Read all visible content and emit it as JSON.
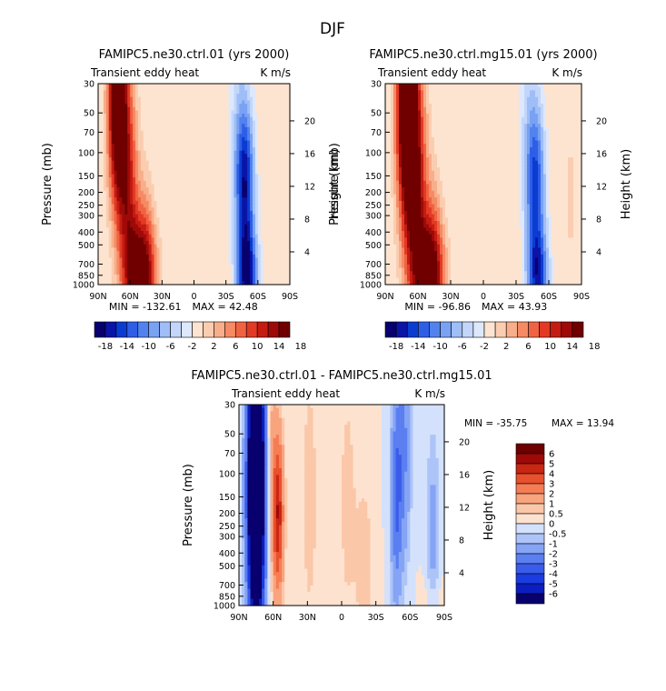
{
  "figure": {
    "season_title": "DJF",
    "variable_label": "Transient eddy heat",
    "units_label": "K m/s"
  },
  "axes_common": {
    "pressure_label": "Pressure (mb)",
    "height_label": "Height (km)",
    "pressure_ticks": [
      "30",
      "50",
      "70",
      "100",
      "150",
      "200",
      "250",
      "300",
      "400",
      "500",
      "700",
      "850",
      "1000"
    ],
    "height_ticks": [
      "4",
      "8",
      "12",
      "16",
      "20"
    ],
    "lat_ticks": [
      "90N",
      "60N",
      "30N",
      "0",
      "30S",
      "60S",
      "90S"
    ]
  },
  "chart_data": [
    {
      "type": "heatmap",
      "id": "panel_ctrl",
      "title": "FAMIPC5.ne30.ctrl.01 (yrs 2000)",
      "subtitle_left": "Transient eddy heat",
      "subtitle_right": "K m/s",
      "xlabel": "",
      "ylabel": "Pressure (mb)",
      "ylabel_right": "Height (km)",
      "xlim": [
        90,
        -90
      ],
      "ylim_mb": [
        1000,
        30
      ],
      "min_label": "MIN = -132.61",
      "max_label": "MAX = 42.48",
      "min": -132.61,
      "max": 42.48,
      "colorbar_ticks": [
        "-18",
        "-14",
        "-10",
        "-6",
        "-2",
        "2",
        "6",
        "10",
        "14",
        "18"
      ],
      "features": [
        {
          "lat": 72,
          "p": 40,
          "value": 22,
          "wlat": 9,
          "wp": 0.45
        },
        {
          "lat": 62,
          "p": 200,
          "value": 12,
          "wlat": 10,
          "wp": 0.5
        },
        {
          "lat": 50,
          "p": 900,
          "value": 18,
          "wlat": 14,
          "wp": 0.25
        },
        {
          "lat": 45,
          "p": 400,
          "value": 4,
          "wlat": 8,
          "wp": 0.3
        },
        {
          "lat": 20,
          "p": 100,
          "value": 2,
          "wlat": 6,
          "wp": 0.6
        },
        {
          "lat": -48,
          "p": 180,
          "value": -16,
          "wlat": 9,
          "wp": 0.35
        },
        {
          "lat": -50,
          "p": 880,
          "value": -16,
          "wlat": 10,
          "wp": 0.2
        },
        {
          "lat": -42,
          "p": 60,
          "value": -4,
          "wlat": 10,
          "wp": 0.5
        },
        {
          "lat": -75,
          "p": 300,
          "value": -2,
          "wlat": 8,
          "wp": 0.6
        }
      ]
    },
    {
      "type": "heatmap",
      "id": "panel_mg15",
      "title": "FAMIPC5.ne30.ctrl.mg15.01 (yrs 2000)",
      "subtitle_left": "Transient eddy heat",
      "subtitle_right": "K m/s",
      "xlabel": "",
      "ylabel": "Pressure (mb)",
      "ylabel_right": "Height (km)",
      "xlim": [
        90,
        -90
      ],
      "ylim_mb": [
        1000,
        30
      ],
      "min_label": "MIN = -96.86",
      "max_label": "MAX = 43.93",
      "min": -96.86,
      "max": 43.93,
      "colorbar_ticks": [
        "-18",
        "-14",
        "-10",
        "-6",
        "-2",
        "2",
        "6",
        "10",
        "14",
        "18"
      ],
      "features": [
        {
          "lat": 70,
          "p": 40,
          "value": 24,
          "wlat": 10,
          "wp": 0.5
        },
        {
          "lat": 62,
          "p": 200,
          "value": 13,
          "wlat": 11,
          "wp": 0.5
        },
        {
          "lat": 50,
          "p": 900,
          "value": 18,
          "wlat": 14,
          "wp": 0.25
        },
        {
          "lat": 45,
          "p": 400,
          "value": 4,
          "wlat": 8,
          "wp": 0.3
        },
        {
          "lat": 20,
          "p": 100,
          "value": 2,
          "wlat": 6,
          "wp": 0.6
        },
        {
          "lat": -48,
          "p": 180,
          "value": -13,
          "wlat": 9,
          "wp": 0.35
        },
        {
          "lat": -50,
          "p": 880,
          "value": -14,
          "wlat": 10,
          "wp": 0.2
        },
        {
          "lat": -42,
          "p": 60,
          "value": -4,
          "wlat": 10,
          "wp": 0.5
        },
        {
          "lat": -80,
          "p": 220,
          "value": 3,
          "wlat": 5,
          "wp": 0.3
        }
      ]
    },
    {
      "type": "heatmap",
      "id": "panel_diff",
      "title": "FAMIPC5.ne30.ctrl.01 - FAMIPC5.ne30.ctrl.mg15.01",
      "subtitle_left": "Transient eddy heat",
      "subtitle_right": "K m/s",
      "xlabel": "",
      "ylabel": "Pressure (mb)",
      "ylabel_right": "Height (km)",
      "xlim": [
        90,
        -90
      ],
      "ylim_mb": [
        1000,
        30
      ],
      "min_label": "MIN = -35.75",
      "max_label": "MAX =  13.94",
      "min": -35.75,
      "max": 13.94,
      "colorbar_ticks": [
        "6",
        "5",
        "4",
        "3",
        "2",
        "1",
        "0.5",
        "0",
        "-0.5",
        "-1",
        "-2",
        "-3",
        "-4",
        "-5",
        "-6"
      ],
      "features": [
        {
          "lat": 75,
          "p": 60,
          "value": -9,
          "wlat": 7,
          "wp": 0.7
        },
        {
          "lat": 75,
          "p": 220,
          "value": -7,
          "wlat": 7,
          "wp": 0.5
        },
        {
          "lat": 56,
          "p": 200,
          "value": 5,
          "wlat": 5,
          "wp": 0.35
        },
        {
          "lat": 62,
          "p": 45,
          "value": 1,
          "wlat": 4,
          "wp": 0.4
        },
        {
          "lat": 28,
          "p": 150,
          "value": 1,
          "wlat": 6,
          "wp": 0.5
        },
        {
          "lat": -5,
          "p": 160,
          "value": 0.7,
          "wlat": 8,
          "wp": 0.6
        },
        {
          "lat": -48,
          "p": 150,
          "value": -3,
          "wlat": 5,
          "wp": 0.45
        },
        {
          "lat": -55,
          "p": 60,
          "value": -2,
          "wlat": 6,
          "wp": 0.5
        },
        {
          "lat": -80,
          "p": 400,
          "value": -1.5,
          "wlat": 6,
          "wp": 0.5
        },
        {
          "lat": -20,
          "p": 500,
          "value": 0.8,
          "wlat": 8,
          "wp": 0.4
        },
        {
          "lat": -80,
          "p": 950,
          "value": 1,
          "wlat": 8,
          "wp": 0.15
        }
      ]
    }
  ],
  "colors": {
    "main_palette": [
      "#08006e",
      "#0a14a6",
      "#0a3cd2",
      "#2e5ee6",
      "#5382ef",
      "#7aa2f3",
      "#9fbef7",
      "#c3d6fa",
      "#dde8fc",
      "#fde4d0",
      "#fbcdb0",
      "#f8ae8a",
      "#f58a64",
      "#f06342",
      "#e23a25",
      "#c41c12",
      "#9e0a08",
      "#700000"
    ],
    "diff_palette": [
      "#08006e",
      "#0b1ec0",
      "#1a3ce0",
      "#3a5cea",
      "#5b7ef1",
      "#85a4f5",
      "#adc4f8",
      "#d3e1fc",
      "#fde2cf",
      "#fbc7a9",
      "#f8a47f",
      "#f57d55",
      "#e8512e",
      "#c92613",
      "#9e0a08",
      "#6e0000"
    ]
  }
}
